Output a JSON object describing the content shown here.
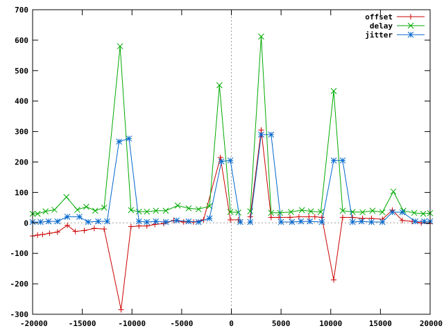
{
  "chart_data": {
    "type": "line",
    "title": "",
    "xlabel": "",
    "ylabel": "",
    "xlim": [
      -20000,
      20000
    ],
    "ylim": [
      -300,
      700
    ],
    "xticks": [
      -20000,
      -15000,
      -10000,
      -5000,
      0,
      5000,
      10000,
      15000,
      20000
    ],
    "yticks": [
      -300,
      -200,
      -100,
      0,
      100,
      200,
      300,
      400,
      500,
      600,
      700
    ],
    "x_tick_labels": [
      "-20000",
      "-15000",
      "-10000",
      "-5000",
      "0",
      "5000",
      "10000",
      "15000",
      "20000"
    ],
    "y_tick_labels": [
      "-300",
      "-200",
      "-100",
      "0",
      "100",
      "200",
      "300",
      "400",
      "500",
      "600",
      "700"
    ],
    "legend_position": "top-right",
    "reference_lines": [
      "x=0 dotted",
      "y=0 dotted"
    ],
    "series": [
      {
        "name": "offset",
        "color": "#cc0000",
        "marker": "plus",
        "segments": [
          [
            [
              -20000,
              -43
            ],
            [
              -19500,
              -40
            ],
            [
              -19000,
              -38
            ],
            [
              -18300,
              -34
            ],
            [
              -17500,
              -30
            ],
            [
              -16500,
              -8
            ],
            [
              -15700,
              -28
            ],
            [
              -14800,
              -25
            ],
            [
              -13800,
              -18
            ],
            [
              -12800,
              -20
            ],
            [
              -11100,
              -285
            ],
            [
              -10100,
              -12
            ],
            [
              -9300,
              -10
            ],
            [
              -8500,
              -10
            ],
            [
              -7700,
              -5
            ],
            [
              -6800,
              -2
            ],
            [
              -5800,
              8
            ],
            [
              -4800,
              3
            ],
            [
              -3800,
              3
            ],
            [
              -2800,
              10
            ],
            [
              -1100,
              215
            ],
            [
              -100,
              10
            ],
            [
              700,
              10
            ]
          ],
          [
            [
              1900,
              20
            ],
            [
              3000,
              305
            ],
            [
              4000,
              18
            ],
            [
              4800,
              18
            ],
            [
              5900,
              18
            ],
            [
              6800,
              20
            ],
            [
              7800,
              20
            ],
            [
              8400,
              20
            ],
            [
              9100,
              18
            ],
            [
              10300,
              -187
            ],
            [
              11200,
              18
            ],
            [
              12200,
              18
            ],
            [
              13200,
              15
            ],
            [
              14100,
              15
            ],
            [
              15200,
              12
            ],
            [
              16200,
              42
            ],
            [
              17200,
              8
            ],
            [
              18200,
              5
            ],
            [
              19100,
              0
            ],
            [
              20000,
              -2
            ]
          ]
        ]
      },
      {
        "name": "delay",
        "color": "#00aa00",
        "marker": "cross",
        "segments": [
          [
            [
              -20000,
              30
            ],
            [
              -19500,
              30
            ],
            [
              -18700,
              38
            ],
            [
              -17800,
              43
            ],
            [
              -16600,
              85
            ],
            [
              -15500,
              43
            ],
            [
              -14600,
              53
            ],
            [
              -13700,
              40
            ],
            [
              -12800,
              50
            ],
            [
              -11200,
              580
            ],
            [
              -10100,
              42
            ],
            [
              -9300,
              37
            ],
            [
              -8500,
              37
            ],
            [
              -7600,
              40
            ],
            [
              -6600,
              40
            ],
            [
              -5400,
              57
            ],
            [
              -4300,
              48
            ],
            [
              -3300,
              45
            ],
            [
              -2200,
              55
            ],
            [
              -1200,
              452
            ],
            [
              -100,
              36
            ],
            [
              700,
              34
            ]
          ],
          [
            [
              1900,
              38
            ],
            [
              3000,
              612
            ],
            [
              4000,
              33
            ],
            [
              4900,
              33
            ],
            [
              6000,
              36
            ],
            [
              7100,
              42
            ],
            [
              8000,
              38
            ],
            [
              9000,
              36
            ],
            [
              10300,
              433
            ],
            [
              11200,
              40
            ],
            [
              12200,
              36
            ],
            [
              13200,
              35
            ],
            [
              14200,
              40
            ],
            [
              15200,
              35
            ],
            [
              16300,
              103
            ],
            [
              17300,
              40
            ],
            [
              18400,
              33
            ],
            [
              19300,
              30
            ],
            [
              20000,
              32
            ]
          ]
        ]
      },
      {
        "name": "jitter",
        "color": "#0066cc",
        "marker": "star",
        "segments": [
          [
            [
              -20000,
              3
            ],
            [
              -19200,
              3
            ],
            [
              -18400,
              5
            ],
            [
              -17500,
              5
            ],
            [
              -16500,
              20
            ],
            [
              -15300,
              20
            ],
            [
              -14400,
              3
            ],
            [
              -13400,
              5
            ],
            [
              -12500,
              5
            ],
            [
              -11300,
              267
            ],
            [
              -10300,
              277
            ],
            [
              -9300,
              5
            ],
            [
              -8500,
              3
            ],
            [
              -7600,
              5
            ],
            [
              -6600,
              3
            ],
            [
              -5500,
              8
            ],
            [
              -4300,
              5
            ],
            [
              -3300,
              3
            ],
            [
              -2200,
              15
            ],
            [
              -1000,
              202
            ],
            [
              -100,
              205
            ],
            [
              900,
              3
            ]
          ],
          [
            [
              1900,
              3
            ],
            [
              3000,
              290
            ],
            [
              4000,
              290
            ],
            [
              5000,
              3
            ],
            [
              6100,
              3
            ],
            [
              7000,
              5
            ],
            [
              7900,
              5
            ],
            [
              9100,
              3
            ],
            [
              10300,
              205
            ],
            [
              11200,
              205
            ],
            [
              12200,
              3
            ],
            [
              13100,
              5
            ],
            [
              14100,
              3
            ],
            [
              15200,
              3
            ],
            [
              16200,
              35
            ],
            [
              17200,
              35
            ],
            [
              18500,
              5
            ],
            [
              19400,
              5
            ],
            [
              20000,
              5
            ]
          ]
        ]
      }
    ]
  }
}
